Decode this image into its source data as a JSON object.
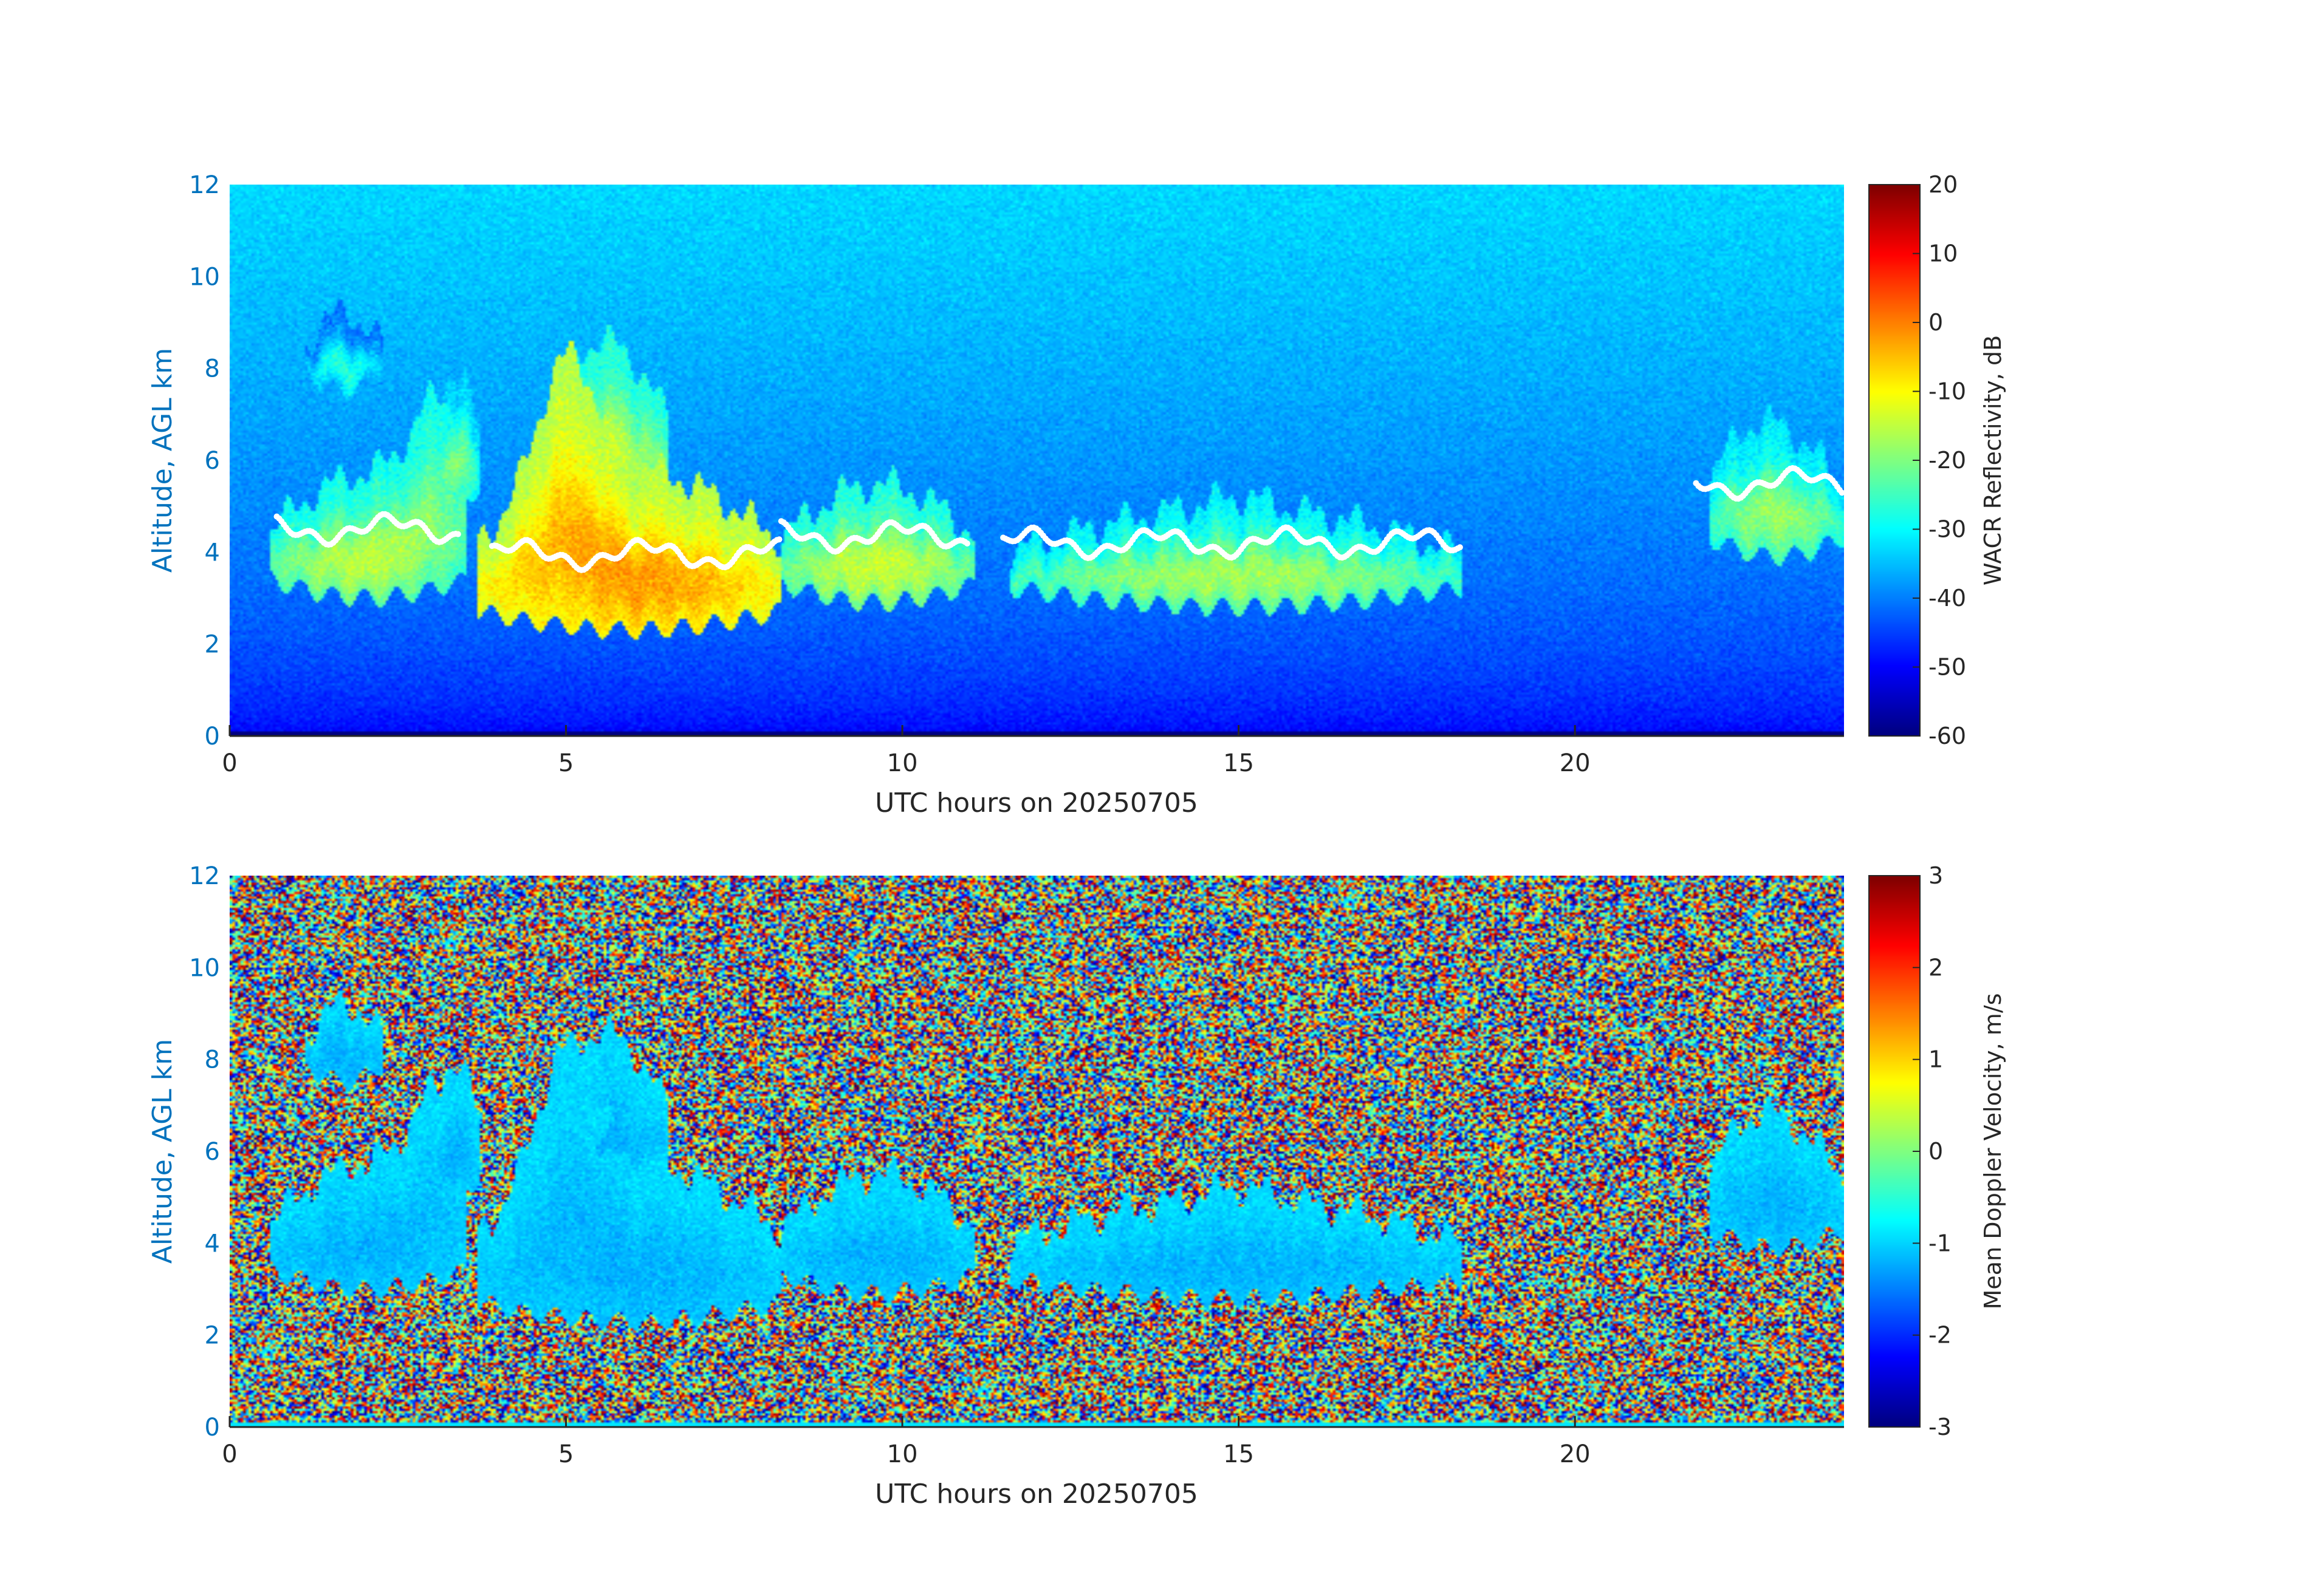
{
  "chart_data": [
    {
      "type": "heatmap",
      "title": "",
      "xlabel": "UTC hours on 20250705",
      "ylabel": "Altitude, AGL km",
      "xlim": [
        0,
        24
      ],
      "ylim": [
        0,
        12
      ],
      "xticks": [
        0,
        5,
        10,
        15,
        20
      ],
      "yticks": [
        0,
        2,
        4,
        6,
        8,
        10,
        12
      ],
      "colorbar": {
        "label": "WACR Reflectivity, dB",
        "range": [
          -60,
          20
        ],
        "ticks": [
          20,
          10,
          0,
          -10,
          -20,
          -30,
          -40,
          -50,
          -60
        ],
        "colormap": "jet"
      },
      "background": "noise floor increasing with altitude (about -52 dB near ground to about -33 dB aloft)",
      "features": [
        {
          "name": "cloud-1",
          "x_range": [
            0.6,
            3.5
          ],
          "alt_range": [
            3.0,
            5.8
          ],
          "dbz_range": [
            -25,
            -10
          ]
        },
        {
          "name": "cloud-2",
          "x_range": [
            3.6,
            11.1
          ],
          "alt_range": [
            2.3,
            8.6
          ],
          "dbz_range": [
            -20,
            5
          ]
        },
        {
          "name": "cloud-3",
          "x_range": [
            11.6,
            18.3
          ],
          "alt_range": [
            2.8,
            5.2
          ],
          "dbz_range": [
            -25,
            -12
          ]
        },
        {
          "name": "cloud-4",
          "x_range": [
            22.0,
            24.0
          ],
          "alt_range": [
            3.9,
            7.0
          ],
          "dbz_range": [
            -25,
            -12
          ]
        },
        {
          "name": "cirrus-patch",
          "x_range": [
            1.1,
            2.3
          ],
          "alt_range": [
            7.5,
            9.3
          ],
          "dbz_range": [
            -30,
            -20
          ]
        }
      ],
      "ceilometer_markers": {
        "color": "white",
        "approx_base_km": [
          4.5,
          4.0,
          4.5,
          4.3,
          5.5
        ]
      }
    },
    {
      "type": "heatmap",
      "title": "",
      "xlabel": "UTC hours on 20250705",
      "ylabel": "Altitude, AGL km",
      "xlim": [
        0,
        24
      ],
      "ylim": [
        0,
        12
      ],
      "xticks": [
        0,
        5,
        10,
        15,
        20
      ],
      "yticks": [
        0,
        2,
        4,
        6,
        8,
        10,
        12
      ],
      "colorbar": {
        "label": "Mean Doppler Velocity, m/s",
        "range": [
          -3,
          3
        ],
        "ticks": [
          3,
          2,
          1,
          0,
          -1,
          -2,
          -3
        ],
        "colormap": "jet"
      },
      "background": "random noise spanning full velocity range",
      "features": [
        {
          "name": "cloud-1",
          "x_range": [
            0.6,
            3.5
          ],
          "alt_range": [
            3.0,
            8.2
          ],
          "velocity_range": [
            -1.3,
            -0.4
          ]
        },
        {
          "name": "cloud-2",
          "x_range": [
            3.6,
            11.1
          ],
          "alt_range": [
            2.3,
            8.6
          ],
          "velocity_range": [
            -1.6,
            -0.6
          ]
        },
        {
          "name": "cloud-3",
          "x_range": [
            11.6,
            18.3
          ],
          "alt_range": [
            2.8,
            5.2
          ],
          "velocity_range": [
            -1.5,
            -0.6
          ]
        },
        {
          "name": "cloud-4",
          "x_range": [
            22.0,
            24.0
          ],
          "alt_range": [
            3.9,
            7.0
          ],
          "velocity_range": [
            -1.3,
            -0.5
          ]
        },
        {
          "name": "cirrus-patch",
          "x_range": [
            1.1,
            2.3
          ],
          "alt_range": [
            7.5,
            9.3
          ],
          "velocity_range": [
            -0.8,
            -0.2
          ]
        }
      ]
    }
  ]
}
